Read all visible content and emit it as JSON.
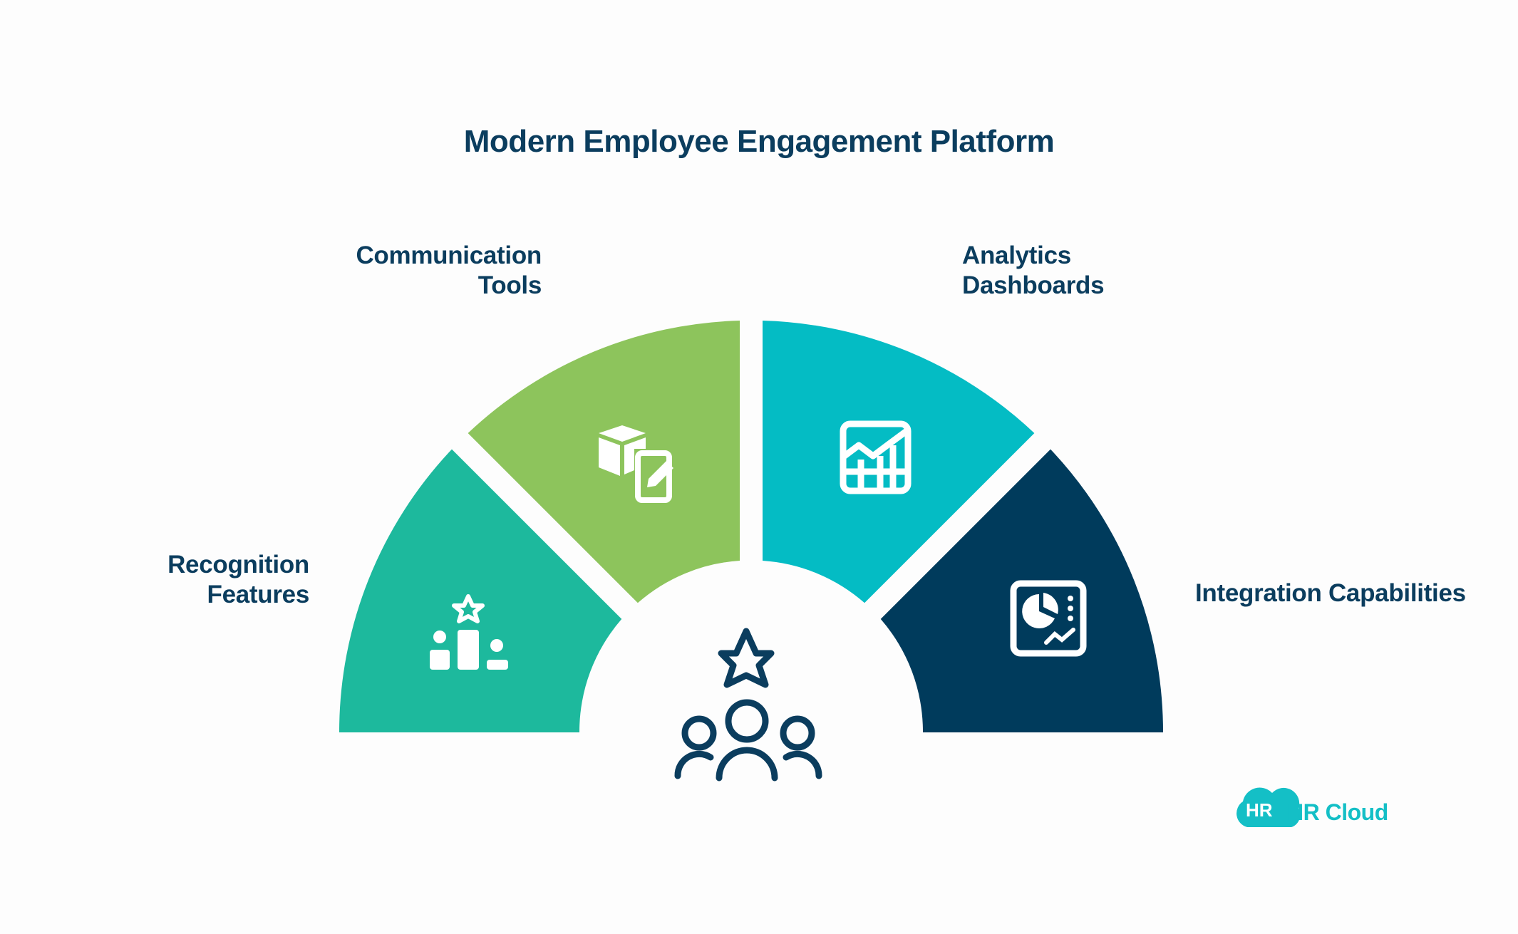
{
  "title": "Modern Employee Engagement Platform",
  "segments": [
    {
      "label_line1": "Recognition",
      "label_line2": "Features",
      "color": "#1db99d",
      "icon": "podium-star-icon"
    },
    {
      "label_line1": "Communication",
      "label_line2": "Tools",
      "color": "#8dc45c",
      "icon": "box-tablet-edit-icon"
    },
    {
      "label_line1": "Analytics",
      "label_line2": "Dashboards",
      "color": "#04bcc4",
      "icon": "chart-grid-icon"
    },
    {
      "label_line1": "Integration Capabilities",
      "color": "#003b5c",
      "icon": "dashboard-pie-icon"
    }
  ],
  "center_icon": "team-star-icon",
  "logo": {
    "badge": "HR",
    "text": "HR Cloud",
    "color": "#14bfc6"
  }
}
